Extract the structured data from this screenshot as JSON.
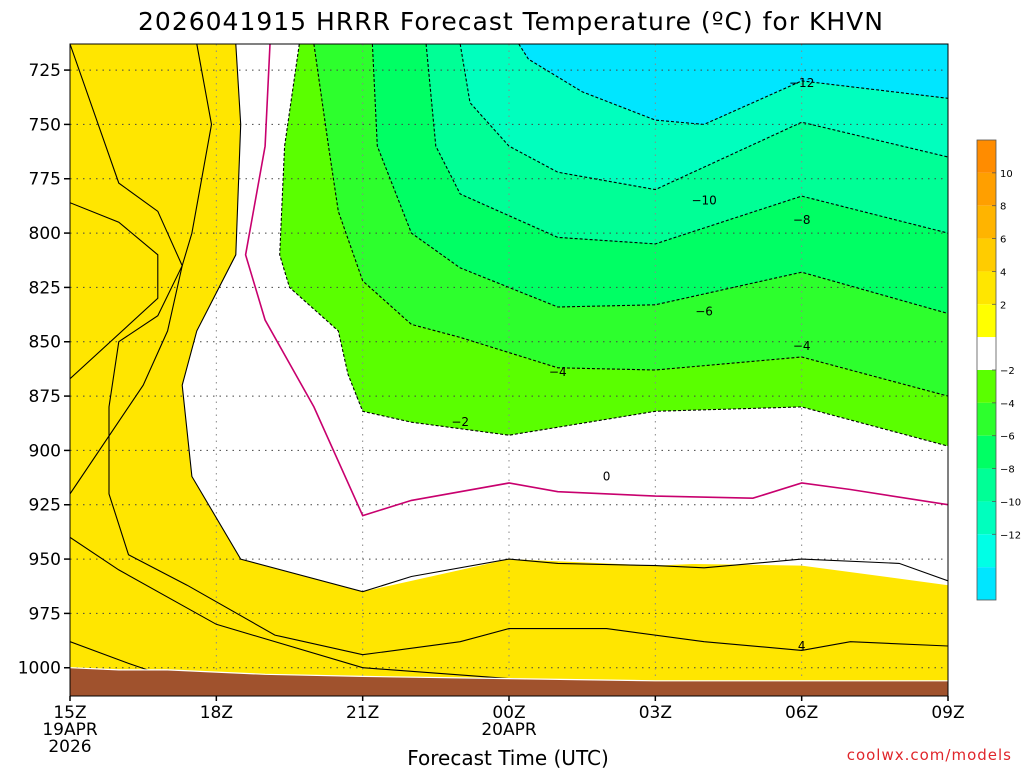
{
  "chart_data": {
    "type": "contour",
    "title": "2026041915 HRRR Forecast Temperature (ºC) for KHVN",
    "xlabel": "Forecast Time (UTC)",
    "ylabel": "",
    "credit": "coolwx.com/models",
    "x_ticks": [
      {
        "hour": 0,
        "lines": [
          "15Z",
          "19APR",
          "2026"
        ]
      },
      {
        "hour": 3,
        "lines": [
          "18Z"
        ]
      },
      {
        "hour": 6,
        "lines": [
          "21Z"
        ]
      },
      {
        "hour": 9,
        "lines": [
          "00Z",
          "20APR"
        ]
      },
      {
        "hour": 12,
        "lines": [
          "03Z"
        ]
      },
      {
        "hour": 15,
        "lines": [
          "06Z"
        ]
      },
      {
        "hour": 18,
        "lines": [
          "09Z"
        ]
      }
    ],
    "xlim": [
      "2026-04-19T15Z",
      "2026-04-20T09Z"
    ],
    "y_ticks": [
      725,
      750,
      775,
      800,
      825,
      850,
      875,
      900,
      925,
      950,
      975,
      1000
    ],
    "ylim": [
      1013,
      713
    ],
    "yunits": "hPa",
    "grid": true,
    "colorbar": {
      "ticks": [
        10,
        8,
        6,
        4,
        2,
        -2,
        -4,
        -6,
        -8,
        -10,
        -12
      ],
      "bands": [
        {
          "color": "#ff8c00"
        },
        {
          "color": "#ff9f00"
        },
        {
          "color": "#ffb400"
        },
        {
          "color": "#ffcc00"
        },
        {
          "color": "#ffe600"
        },
        {
          "color": "#ffff00"
        },
        {
          "color": "#ffffff"
        },
        {
          "color": "#5aff00"
        },
        {
          "color": "#2dff2d"
        },
        {
          "color": "#00ff64"
        },
        {
          "color": "#00ff96"
        },
        {
          "color": "#00ffbe"
        },
        {
          "color": "#00ffe6"
        },
        {
          "color": "#00e6ff"
        }
      ]
    },
    "ground_color": "#a0522d",
    "freezing_line_color": "#c8006e",
    "contour_labels": [
      {
        "text": "-12",
        "hour": 15.0,
        "p": 731
      },
      {
        "text": "-10",
        "hour": 13.0,
        "p": 785
      },
      {
        "text": "-8",
        "hour": 15.0,
        "p": 794
      },
      {
        "text": "-6",
        "hour": 13.0,
        "p": 836
      },
      {
        "text": "-4",
        "hour": 10.0,
        "p": 864
      },
      {
        "text": "-4",
        "hour": 15.0,
        "p": 852
      },
      {
        "text": "-2",
        "hour": 8.0,
        "p": 887
      },
      {
        "text": "0",
        "hour": 11.0,
        "p": 912
      },
      {
        "text": "4",
        "hour": 15.0,
        "p": 990
      }
    ],
    "fill_regions": [
      {
        "level": "above 8",
        "color": "#ff8c00",
        "points": [
          [
            0,
            786
          ],
          [
            1.8,
            795
          ],
          [
            1.8,
            830
          ],
          [
            0,
            867
          ]
        ]
      },
      {
        "level": "4 to 8",
        "color": "#ffb400",
        "points": [
          [
            0,
            745
          ],
          [
            1.0,
            777
          ],
          [
            1.8,
            790
          ],
          [
            2.3,
            815
          ],
          [
            1.8,
            838
          ],
          [
            0,
            880
          ],
          [
            0,
            940
          ],
          [
            1.2,
            948
          ],
          [
            2.4,
            962
          ],
          [
            4.2,
            985
          ],
          [
            6,
            994
          ],
          [
            9,
            988
          ],
          [
            12,
            990
          ],
          [
            15,
            992
          ],
          [
            18,
            990
          ],
          [
            18,
            1013
          ],
          [
            0,
            1013
          ]
        ]
      },
      {
        "level": "2 to 4",
        "color": "#ffe600",
        "points": [
          [
            0,
            713
          ],
          [
            3.4,
            713
          ],
          [
            3.5,
            750
          ],
          [
            3.4,
            810
          ],
          [
            2.6,
            845
          ],
          [
            2.3,
            870
          ],
          [
            2.5,
            912
          ],
          [
            3.5,
            950
          ],
          [
            6,
            965
          ],
          [
            9,
            950
          ],
          [
            12,
            953
          ],
          [
            15,
            950
          ],
          [
            18,
            960
          ],
          [
            18,
            1013
          ],
          [
            0,
            1013
          ]
        ]
      },
      {
        "level": "0 to 2",
        "color": "#ffffff",
        "points": [
          [
            3.6,
            713
          ],
          [
            4.7,
            713
          ],
          [
            4.3,
            760
          ],
          [
            4.2,
            800
          ],
          [
            5,
            880
          ],
          [
            6,
            930
          ],
          [
            9,
            915
          ],
          [
            12,
            921
          ],
          [
            15,
            915
          ],
          [
            18,
            925
          ],
          [
            18,
            962
          ],
          [
            15,
            953
          ],
          [
            12,
            952
          ],
          [
            9,
            945
          ],
          [
            6,
            963
          ],
          [
            3.5,
            948
          ],
          [
            2.5,
            910
          ],
          [
            2.3,
            870
          ],
          [
            2.6,
            845
          ],
          [
            3.4,
            810
          ],
          [
            3.5,
            750
          ]
        ]
      },
      {
        "level": "-2 to -4",
        "color": "#5aff00",
        "points": [
          [
            4.7,
            713
          ],
          [
            18,
            713
          ],
          [
            18,
            898
          ],
          [
            15,
            880
          ],
          [
            12,
            882
          ],
          [
            9,
            893
          ],
          [
            7,
            887
          ],
          [
            6,
            882
          ],
          [
            5.7,
            865
          ],
          [
            5.5,
            845
          ],
          [
            4.5,
            825
          ],
          [
            4.3,
            810
          ],
          [
            4.4,
            760
          ]
        ]
      },
      {
        "level": "-4 to -6",
        "color": "#2dff2d",
        "points": [
          [
            5.0,
            713
          ],
          [
            18,
            713
          ],
          [
            18,
            875
          ],
          [
            15,
            857
          ],
          [
            12,
            863
          ],
          [
            10,
            862
          ],
          [
            8,
            848
          ],
          [
            7,
            842
          ],
          [
            6,
            822
          ],
          [
            5.5,
            790
          ],
          [
            5.3,
            760
          ]
        ]
      },
      {
        "level": "-6 to -8",
        "color": "#00ff64",
        "points": [
          [
            6.2,
            713
          ],
          [
            18,
            713
          ],
          [
            18,
            837
          ],
          [
            15,
            818
          ],
          [
            12,
            833
          ],
          [
            10,
            834
          ],
          [
            8,
            816
          ],
          [
            7,
            800
          ],
          [
            6.3,
            760
          ]
        ]
      },
      {
        "level": "-8 to -10",
        "color": "#00ff96",
        "points": [
          [
            7.3,
            713
          ],
          [
            18,
            713
          ],
          [
            18,
            800
          ],
          [
            15,
            783
          ],
          [
            12,
            805
          ],
          [
            10,
            802
          ],
          [
            8,
            782
          ],
          [
            7.5,
            760
          ]
        ]
      },
      {
        "level": "-10 to -12",
        "color": "#00ffbe",
        "points": [
          [
            8.0,
            713
          ],
          [
            18,
            713
          ],
          [
            18,
            765
          ],
          [
            15,
            749
          ],
          [
            12,
            780
          ],
          [
            10,
            772
          ],
          [
            9,
            760
          ],
          [
            8.2,
            740
          ]
        ]
      },
      {
        "level": "below -12",
        "color": "#00e6ff",
        "points": [
          [
            9.2,
            713
          ],
          [
            18,
            713
          ],
          [
            18,
            738
          ],
          [
            15,
            730
          ],
          [
            13,
            750
          ],
          [
            12,
            748
          ],
          [
            10.5,
            735
          ],
          [
            9.4,
            720
          ]
        ]
      }
    ],
    "contour_lines": [
      {
        "level": -12,
        "style": "dashed",
        "points": [
          [
            9.2,
            713
          ],
          [
            9.4,
            720
          ],
          [
            10.5,
            735
          ],
          [
            12,
            748
          ],
          [
            13,
            750
          ],
          [
            15,
            730
          ],
          [
            18,
            738
          ]
        ]
      },
      {
        "level": -10,
        "style": "dashed",
        "points": [
          [
            8.0,
            713
          ],
          [
            8.2,
            740
          ],
          [
            9,
            760
          ],
          [
            10,
            772
          ],
          [
            12,
            780
          ],
          [
            15,
            749
          ],
          [
            18,
            765
          ]
        ]
      },
      {
        "level": -8,
        "style": "dashed",
        "points": [
          [
            7.3,
            713
          ],
          [
            7.5,
            760
          ],
          [
            8,
            782
          ],
          [
            10,
            802
          ],
          [
            12,
            805
          ],
          [
            15,
            783
          ],
          [
            18,
            800
          ]
        ]
      },
      {
        "level": -6,
        "style": "dashed",
        "points": [
          [
            6.2,
            713
          ],
          [
            6.3,
            760
          ],
          [
            7,
            800
          ],
          [
            8,
            816
          ],
          [
            10,
            834
          ],
          [
            12,
            833
          ],
          [
            15,
            818
          ],
          [
            18,
            837
          ]
        ]
      },
      {
        "level": -4,
        "style": "dashed",
        "points": [
          [
            5.0,
            713
          ],
          [
            5.3,
            760
          ],
          [
            5.5,
            790
          ],
          [
            6,
            822
          ],
          [
            7,
            842
          ],
          [
            8,
            848
          ],
          [
            10,
            862
          ],
          [
            12,
            863
          ],
          [
            15,
            857
          ],
          [
            18,
            875
          ]
        ]
      },
      {
        "level": -2,
        "style": "dashed",
        "points": [
          [
            4.7,
            713
          ],
          [
            4.4,
            760
          ],
          [
            4.3,
            810
          ],
          [
            4.5,
            825
          ],
          [
            5.5,
            845
          ],
          [
            5.7,
            865
          ],
          [
            6,
            882
          ],
          [
            7,
            887
          ],
          [
            9,
            893
          ],
          [
            12,
            882
          ],
          [
            15,
            880
          ],
          [
            18,
            898
          ]
        ]
      },
      {
        "level": 0,
        "style": "freezing",
        "points": [
          [
            4.1,
            713
          ],
          [
            4.0,
            760
          ],
          [
            3.6,
            810
          ],
          [
            4.0,
            840
          ],
          [
            5,
            880
          ],
          [
            6,
            930
          ],
          [
            7,
            923
          ],
          [
            9,
            915
          ],
          [
            10,
            919
          ],
          [
            12,
            921
          ],
          [
            14,
            922
          ],
          [
            15,
            915
          ],
          [
            16,
            918
          ],
          [
            18,
            925
          ]
        ]
      },
      {
        "level": 2,
        "style": "solid",
        "points": [
          [
            3.4,
            713
          ],
          [
            3.5,
            750
          ],
          [
            3.4,
            810
          ],
          [
            2.6,
            845
          ],
          [
            2.3,
            870
          ],
          [
            2.5,
            912
          ],
          [
            3.5,
            950
          ],
          [
            6,
            965
          ],
          [
            7,
            958
          ],
          [
            9,
            950
          ],
          [
            10,
            952
          ],
          [
            12,
            953
          ],
          [
            13,
            954
          ],
          [
            15,
            950
          ],
          [
            17,
            952
          ],
          [
            18,
            960
          ]
        ]
      },
      {
        "level": 4,
        "style": "solid",
        "points": [
          [
            2.6,
            713
          ],
          [
            2.9,
            750
          ],
          [
            2.5,
            800
          ],
          [
            2.3,
            815
          ],
          [
            1.8,
            838
          ],
          [
            1.0,
            850
          ],
          [
            0.8,
            880
          ],
          [
            0.8,
            920
          ],
          [
            1.2,
            948
          ],
          [
            2.4,
            962
          ],
          [
            4.2,
            985
          ],
          [
            6,
            994
          ],
          [
            8,
            988
          ],
          [
            9,
            982
          ],
          [
            11,
            982
          ],
          [
            13,
            988
          ],
          [
            15,
            992
          ],
          [
            16,
            988
          ],
          [
            18,
            990
          ]
        ]
      },
      {
        "level": 6,
        "style": "solid",
        "points": [
          [
            0,
            713
          ],
          [
            1.0,
            777
          ],
          [
            1.8,
            790
          ],
          [
            2.3,
            815
          ],
          [
            2.0,
            845
          ],
          [
            1.5,
            870
          ],
          [
            0,
            920
          ]
        ]
      },
      {
        "level": 6,
        "style": "solid",
        "points": [
          [
            0,
            940
          ],
          [
            1.0,
            955
          ],
          [
            3,
            980
          ],
          [
            6,
            1000
          ],
          [
            9,
            1005
          ],
          [
            12,
            1008
          ],
          [
            15,
            1010
          ],
          [
            18,
            1012
          ]
        ]
      },
      {
        "level": 8,
        "style": "solid",
        "points": [
          [
            0,
            786
          ],
          [
            1.0,
            795
          ],
          [
            1.8,
            810
          ],
          [
            1.8,
            830
          ],
          [
            0,
            867
          ]
        ]
      },
      {
        "level": 8,
        "style": "solid",
        "points": [
          [
            0,
            988
          ],
          [
            1.2,
            998
          ],
          [
            2.5,
            1008
          ]
        ]
      }
    ],
    "ground_top": [
      [
        0,
        1000
      ],
      [
        1.0,
        1001
      ],
      [
        2,
        1001
      ],
      [
        3,
        1002
      ],
      [
        4,
        1003
      ],
      [
        6,
        1004
      ],
      [
        9,
        1005
      ],
      [
        12,
        1006
      ],
      [
        15,
        1006
      ],
      [
        18,
        1006
      ]
    ]
  }
}
